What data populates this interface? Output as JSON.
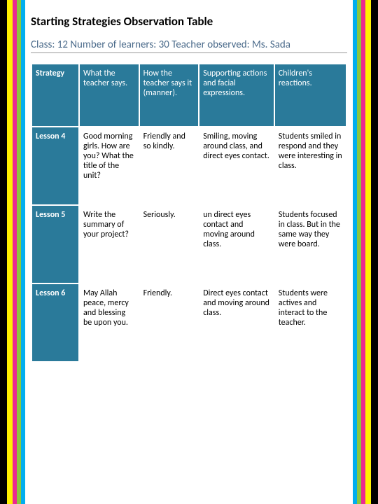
{
  "title": "Starting Strategies Observation Table",
  "subtitle": "Class: 12 Number of learners: 30 Teacher observed: Ms. Sada",
  "colors": {
    "header_bg": "#2a7a9a",
    "header_text": "#ffffff",
    "cell_bg": "#ffffff",
    "cell_text": "#000000",
    "subtitle_color": "#4a6a8a",
    "stripes": [
      "#000000",
      "#fff100",
      "#ec2891",
      "#8cc63f",
      "#00aeef"
    ]
  },
  "columns": [
    "Strategy",
    "What the teacher says.",
    "How the teacher says it (manner).",
    "Supporting actions and facial expressions.",
    "Children's reactions."
  ],
  "rows": [
    {
      "label": "Lesson 4",
      "cells": [
        "Good morning girls. How are you? What the title of the unit?",
        "Friendly and so kindly.",
        "Smiling, moving around class, and direct eyes contact.",
        "Students smiled in respond and they were interesting in class."
      ]
    },
    {
      "label": "Lesson 5",
      "cells": [
        "Write the summary of your project?",
        "Seriously.",
        "un direct eyes contact and moving around class.",
        "Students focused in class. But in the same way they were board."
      ]
    },
    {
      "label": "Lesson 6",
      "cells": [
        "May Allah peace, mercy and blessing be upon you.",
        "Friendly.",
        "Direct eyes contact and moving around class.",
        "Students were actives and interact to the teacher."
      ]
    }
  ]
}
